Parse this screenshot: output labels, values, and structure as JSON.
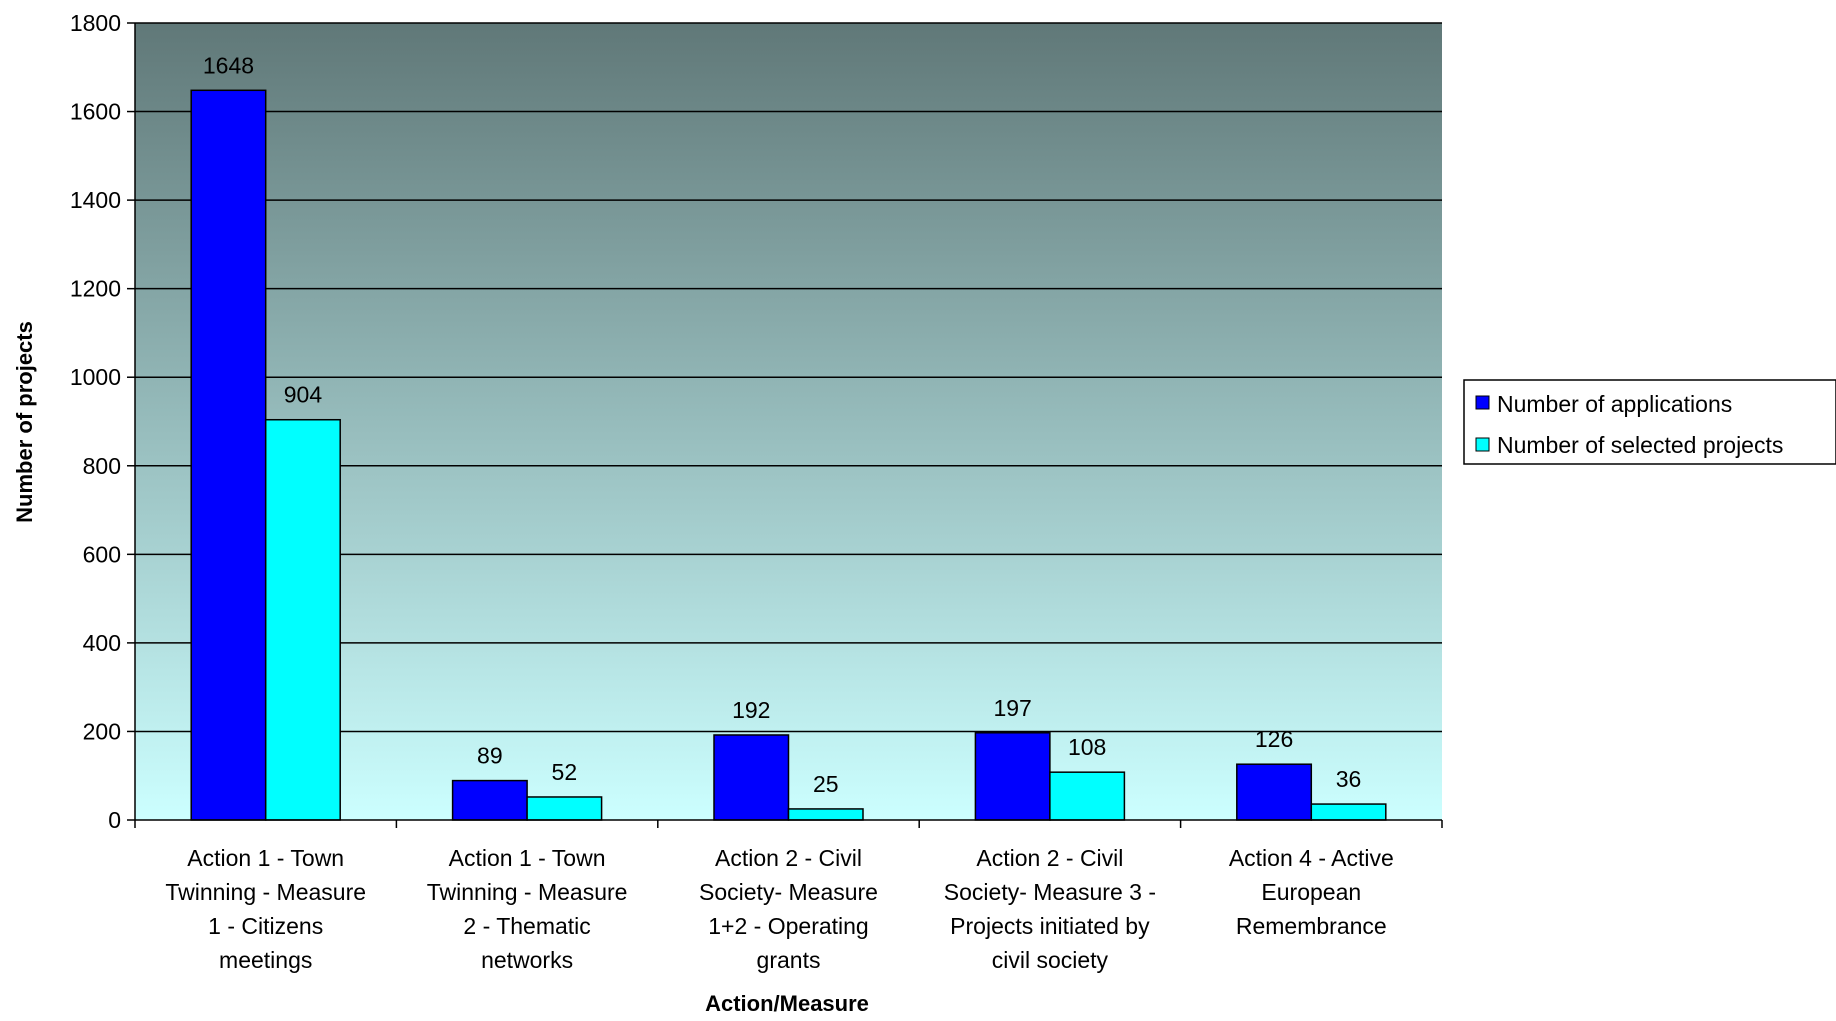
{
  "chart_data": {
    "type": "bar",
    "title": "",
    "xlabel": "Action/Measure",
    "ylabel": "Number of projects",
    "ylim": [
      0,
      1800
    ],
    "yticks": [
      0,
      200,
      400,
      600,
      800,
      1000,
      1200,
      1400,
      1600,
      1800
    ],
    "grid": true,
    "legend_position": "right",
    "categories": [
      [
        "Action 1 - Town",
        "Twinning - Measure",
        "1 - Citizens",
        "meetings"
      ],
      [
        "Action 1 - Town",
        "Twinning - Measure",
        "2 - Thematic",
        "networks"
      ],
      [
        "Action 2 - Civil",
        "Society- Measure",
        "1+2 - Operating",
        "grants"
      ],
      [
        "Action 2 - Civil",
        "Society- Measure 3 -",
        "Projects initiated by",
        "civil society"
      ],
      [
        "Action 4 - Active",
        "European",
        "Remembrance"
      ]
    ],
    "series": [
      {
        "name": "Number of applications",
        "color": "#0000ff",
        "values": [
          1648,
          89,
          192,
          197,
          126
        ]
      },
      {
        "name": "Number of selected projects",
        "color": "#00ffff",
        "values": [
          904,
          52,
          25,
          108,
          36
        ]
      }
    ],
    "colors": {
      "plot_top": "#607878",
      "plot_bottom": "#ccffff",
      "gridline": "#000000",
      "bar_outline": "#000000"
    }
  }
}
